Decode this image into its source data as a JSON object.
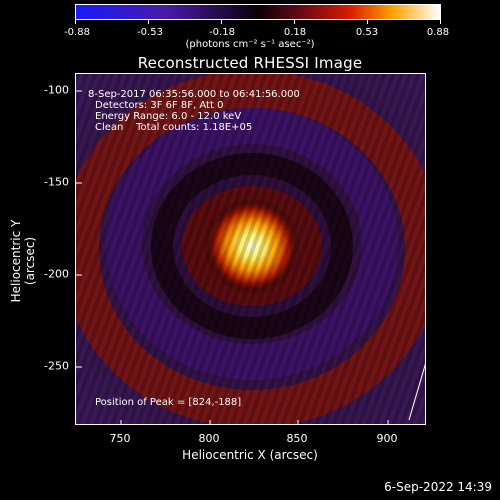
{
  "colorbar": {
    "ticks": [
      "-0.88",
      "-0.53",
      "-0.18",
      "0.18",
      "0.53",
      "0.88"
    ],
    "units": "(photons cm⁻² s⁻¹ asec⁻²)"
  },
  "plot": {
    "title": "Reconstructed RHESSI Image",
    "info_lines": [
      "8-Sep-2017 06:35:56.000 to 06:41:56.000",
      "Detectors: 3F 6F 8F, Att 0",
      "Energy Range: 6.0 - 12.0 keV",
      "Clean    Total counts: 1.18E+05"
    ],
    "peak_text": "Position of Peak = [824,-188]",
    "y_ticks": [
      "-100",
      "-150",
      "-200",
      "-250"
    ],
    "x_ticks": [
      "750",
      "800",
      "850",
      "900"
    ],
    "ylabel": "Heliocentric  Y (arcsec)",
    "xlabel": "Heliocentric X (arcsec)"
  },
  "footer": {
    "timestamp": "6-Sep-2022 14:39"
  },
  "colors": {
    "negative": "#1b1bff",
    "zero": "#000000",
    "mid": "#c43a00",
    "peak": "#ffffcc"
  },
  "chart_data": {
    "type": "heatmap",
    "title": "Reconstructed RHESSI Image",
    "xlabel": "Heliocentric X (arcsec)",
    "ylabel": "Heliocentric  Y (arcsec)",
    "xlim": [
      726,
      920
    ],
    "ylim": [
      -285,
      -90
    ],
    "x_ticks": [
      750,
      800,
      850,
      900
    ],
    "y_ticks": [
      -100,
      -150,
      -200,
      -250
    ],
    "colorbar_range": [
      -0.88,
      0.88
    ],
    "peak": {
      "x": 824,
      "y": -188
    }
  }
}
